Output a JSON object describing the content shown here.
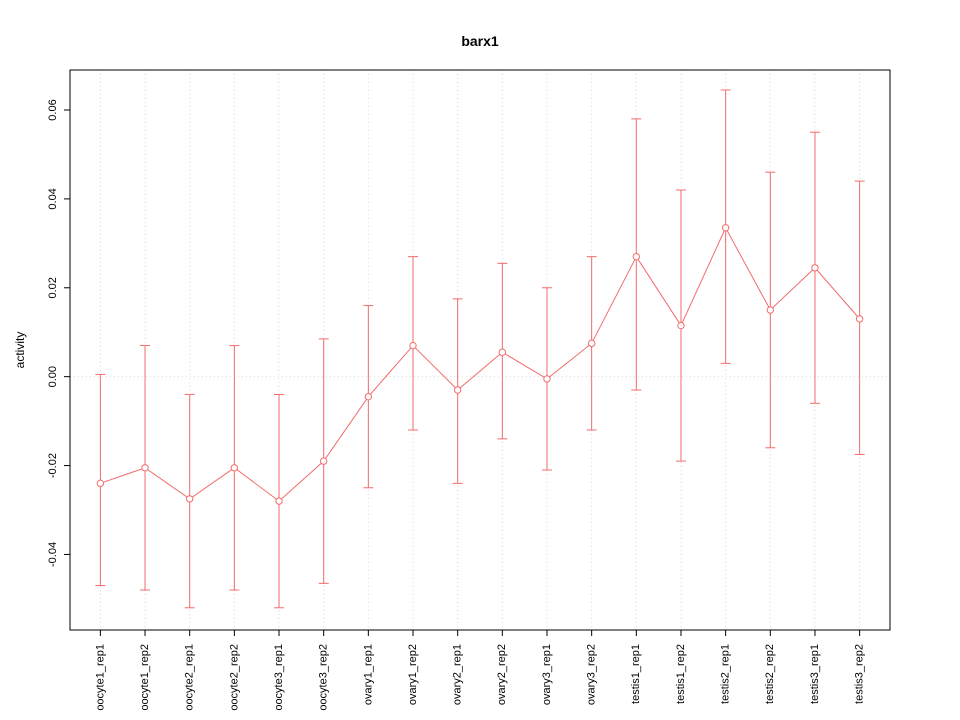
{
  "chart_data": {
    "type": "line",
    "title": "barx1",
    "ylabel": "activity",
    "xlabel": "",
    "legend": "none",
    "grid": "dotted vertical gridline per category; dotted horizontal line at y=0",
    "categories": [
      "oocyte1_rep1",
      "oocyte1_rep2",
      "oocyte2_rep1",
      "oocyte2_rep2",
      "oocyte3_rep1",
      "oocyte3_rep2",
      "ovary1_rep1",
      "ovary1_rep2",
      "ovary2_rep1",
      "ovary2_rep2",
      "ovary3_rep1",
      "ovary3_rep2",
      "testis1_rep1",
      "testis1_rep2",
      "testis2_rep1",
      "testis2_rep2",
      "testis3_rep1",
      "testis3_rep2"
    ],
    "series": [
      {
        "name": "activity",
        "means": [
          -0.024,
          -0.0205,
          -0.0275,
          -0.0205,
          -0.028,
          -0.019,
          -0.0045,
          0.007,
          -0.003,
          0.0055,
          -0.0005,
          0.0075,
          0.027,
          0.0115,
          0.0335,
          0.015,
          0.0245,
          0.013
        ],
        "lower": [
          -0.047,
          -0.048,
          -0.052,
          -0.048,
          -0.052,
          -0.0465,
          -0.025,
          -0.012,
          -0.024,
          -0.014,
          -0.021,
          -0.012,
          -0.003,
          -0.019,
          0.003,
          -0.016,
          -0.006,
          -0.0175
        ],
        "upper": [
          0.0005,
          0.007,
          -0.004,
          0.007,
          -0.004,
          0.0085,
          0.016,
          0.027,
          0.0175,
          0.0255,
          0.02,
          0.027,
          0.058,
          0.042,
          0.0645,
          0.046,
          0.055,
          0.044
        ]
      }
    ],
    "yticks": [
      -0.04,
      -0.02,
      0.0,
      0.02,
      0.04,
      0.06
    ],
    "ytick_labels": [
      "-0.04",
      "-0.02",
      "0.00",
      "0.02",
      "0.04",
      "0.06"
    ],
    "ylim": [
      -0.057,
      0.069
    ],
    "zero_line": 0,
    "colors": {
      "series": "#f26c6c",
      "grid": "#d9d9d9",
      "axis": "#000000",
      "background": "#ffffff"
    }
  }
}
